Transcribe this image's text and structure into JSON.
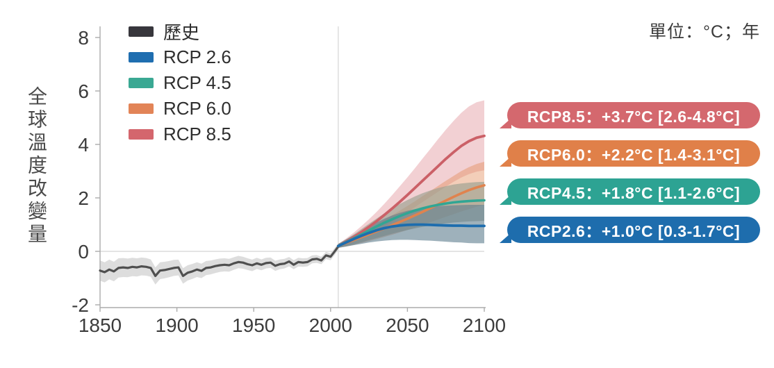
{
  "unit_label": "單位：°C；年",
  "y_axis_title": "全球溫度改變量",
  "legend": [
    {
      "id": "historical",
      "label": "歷史",
      "color": "#37363c"
    },
    {
      "id": "rcp26",
      "label": "RCP 2.6",
      "color": "#1f6eb0"
    },
    {
      "id": "rcp45",
      "label": "RCP 4.5",
      "color": "#3aa893"
    },
    {
      "id": "rcp60",
      "label": "RCP 6.0",
      "color": "#e28457"
    },
    {
      "id": "rcp85",
      "label": "RCP 8.5",
      "color": "#d4666d"
    }
  ],
  "callouts": [
    {
      "id": "rcp85",
      "label": "RCP8.5：+3.7°C [2.6-4.8°C]",
      "color": "#d4686e"
    },
    {
      "id": "rcp60",
      "label": "RCP6.0：+2.2°C [1.4-3.1°C]",
      "color": "#e08049"
    },
    {
      "id": "rcp45",
      "label": "RCP4.5：+1.8°C [1.1-2.6°C]",
      "color": "#2da393"
    },
    {
      "id": "rcp26",
      "label": "RCP2.6：+1.0°C [0.3-1.7°C]",
      "color": "#1e6dad"
    }
  ],
  "chart_data": {
    "type": "line",
    "title": "",
    "xlabel": "年",
    "ylabel": "全球溫度改變量 (°C)",
    "xlim": [
      1850,
      2100
    ],
    "ylim": [
      -2.1,
      8.4
    ],
    "x_ticks": [
      1850,
      1900,
      1950,
      2000,
      2050,
      2100
    ],
    "y_ticks": [
      8,
      6,
      4,
      2,
      0,
      -2
    ],
    "grid": "zero-line-only",
    "legend_position": "top-left",
    "reference_lines": {
      "vertical_x": 2005,
      "horizontal_y": 0
    },
    "series": [
      {
        "id": "historical",
        "name": "歷史",
        "line_color": "#4f4f4f",
        "line_width": 3.2,
        "band_color": "#d9d9d9",
        "band_opacity": 0.9,
        "x": [
          1850,
          1853,
          1856,
          1859,
          1862,
          1865,
          1868,
          1871,
          1874,
          1877,
          1880,
          1883,
          1886,
          1889,
          1892,
          1895,
          1898,
          1901,
          1904,
          1907,
          1910,
          1913,
          1916,
          1919,
          1922,
          1925,
          1928,
          1931,
          1934,
          1937,
          1940,
          1943,
          1946,
          1949,
          1952,
          1955,
          1958,
          1961,
          1964,
          1967,
          1970,
          1973,
          1976,
          1979,
          1982,
          1985,
          1988,
          1991,
          1994,
          1997,
          2000,
          2003,
          2005
        ],
        "y": [
          -0.72,
          -0.78,
          -0.68,
          -0.75,
          -0.62,
          -0.6,
          -0.62,
          -0.58,
          -0.6,
          -0.56,
          -0.58,
          -0.62,
          -0.92,
          -0.72,
          -0.7,
          -0.66,
          -0.62,
          -0.6,
          -0.92,
          -0.8,
          -0.75,
          -0.68,
          -0.73,
          -0.62,
          -0.6,
          -0.55,
          -0.52,
          -0.5,
          -0.52,
          -0.45,
          -0.4,
          -0.42,
          -0.48,
          -0.52,
          -0.45,
          -0.5,
          -0.44,
          -0.42,
          -0.54,
          -0.48,
          -0.46,
          -0.38,
          -0.5,
          -0.4,
          -0.42,
          -0.4,
          -0.3,
          -0.28,
          -0.34,
          -0.15,
          -0.2,
          0.02,
          0.18
        ],
        "band_hi": [
          -0.34,
          -0.41,
          -0.31,
          -0.39,
          -0.26,
          -0.25,
          -0.27,
          -0.24,
          -0.26,
          -0.23,
          -0.25,
          -0.3,
          -0.6,
          -0.41,
          -0.39,
          -0.36,
          -0.32,
          -0.31,
          -0.63,
          -0.52,
          -0.47,
          -0.41,
          -0.46,
          -0.36,
          -0.34,
          -0.3,
          -0.27,
          -0.26,
          -0.28,
          -0.22,
          -0.17,
          -0.2,
          -0.26,
          -0.31,
          -0.24,
          -0.3,
          -0.24,
          -0.23,
          -0.35,
          -0.3,
          -0.28,
          -0.21,
          -0.33,
          -0.24,
          -0.26,
          -0.25,
          -0.15,
          -0.14,
          -0.2,
          -0.02,
          -0.07,
          0.15,
          0.3
        ],
        "band_lo": [
          -1.1,
          -1.16,
          -1.05,
          -1.12,
          -0.98,
          -0.96,
          -0.97,
          -0.93,
          -0.94,
          -0.9,
          -0.91,
          -0.95,
          -1.24,
          -1.04,
          -1.01,
          -0.97,
          -0.92,
          -0.9,
          -1.21,
          -1.09,
          -1.03,
          -0.96,
          -1.0,
          -0.89,
          -0.86,
          -0.81,
          -0.77,
          -0.75,
          -0.76,
          -0.69,
          -0.63,
          -0.65,
          -0.7,
          -0.74,
          -0.66,
          -0.71,
          -0.64,
          -0.62,
          -0.73,
          -0.67,
          -0.64,
          -0.56,
          -0.67,
          -0.57,
          -0.58,
          -0.56,
          -0.45,
          -0.43,
          -0.48,
          -0.29,
          -0.33,
          -0.11,
          0.06
        ]
      },
      {
        "id": "rcp85",
        "name": "RCP 8.5",
        "line_color": "#cb6067",
        "line_width": 3.8,
        "band_color": "#d4646c",
        "band_opacity": 0.3,
        "x": [
          2005,
          2010,
          2015,
          2020,
          2025,
          2030,
          2035,
          2040,
          2045,
          2050,
          2055,
          2060,
          2065,
          2070,
          2075,
          2080,
          2085,
          2090,
          2095,
          2100
        ],
        "y": [
          0.2,
          0.36,
          0.53,
          0.72,
          0.92,
          1.13,
          1.36,
          1.6,
          1.85,
          2.11,
          2.38,
          2.65,
          2.92,
          3.19,
          3.46,
          3.71,
          3.94,
          4.12,
          4.25,
          4.32
        ],
        "band_hi": [
          0.28,
          0.48,
          0.7,
          0.94,
          1.2,
          1.48,
          1.78,
          2.1,
          2.43,
          2.77,
          3.12,
          3.48,
          3.84,
          4.2,
          4.55,
          4.88,
          5.18,
          5.42,
          5.58,
          5.65
        ],
        "band_lo": [
          0.13,
          0.24,
          0.36,
          0.49,
          0.63,
          0.78,
          0.94,
          1.11,
          1.29,
          1.47,
          1.66,
          1.85,
          2.04,
          2.23,
          2.42,
          2.6,
          2.76,
          2.89,
          2.98,
          3.03
        ],
        "mean_2081_2100": 3.7,
        "likely_range_2081_2100": [
          2.6,
          4.8
        ]
      },
      {
        "id": "rcp60",
        "name": "RCP 6.0",
        "line_color": "#e0834e",
        "line_width": 3.6,
        "band_color": "#e1854f",
        "band_opacity": 0.4,
        "x": [
          2005,
          2010,
          2015,
          2020,
          2025,
          2030,
          2035,
          2040,
          2045,
          2050,
          2055,
          2060,
          2065,
          2070,
          2075,
          2080,
          2085,
          2090,
          2095,
          2100
        ],
        "y": [
          0.2,
          0.31,
          0.42,
          0.53,
          0.64,
          0.75,
          0.86,
          0.98,
          1.1,
          1.22,
          1.35,
          1.48,
          1.62,
          1.76,
          1.9,
          2.04,
          2.17,
          2.29,
          2.39,
          2.47
        ],
        "band_hi": [
          0.28,
          0.42,
          0.56,
          0.71,
          0.86,
          1.02,
          1.18,
          1.35,
          1.52,
          1.7,
          1.88,
          2.07,
          2.26,
          2.45,
          2.64,
          2.82,
          3.0,
          3.15,
          3.27,
          3.35
        ],
        "band_lo": [
          0.13,
          0.18,
          0.24,
          0.31,
          0.38,
          0.46,
          0.54,
          0.62,
          0.71,
          0.8,
          0.89,
          0.99,
          1.09,
          1.19,
          1.29,
          1.39,
          1.49,
          1.58,
          1.67,
          1.74
        ],
        "mean_2081_2100": 2.2,
        "likely_range_2081_2100": [
          1.4,
          3.1
        ]
      },
      {
        "id": "rcp45",
        "name": "RCP 4.5",
        "line_color": "#31a694",
        "line_width": 3.6,
        "band_color": "#9aa08f",
        "band_opacity": 0.65,
        "x": [
          2005,
          2010,
          2015,
          2020,
          2025,
          2030,
          2035,
          2040,
          2045,
          2050,
          2055,
          2060,
          2065,
          2070,
          2075,
          2080,
          2085,
          2090,
          2095,
          2100
        ],
        "y": [
          0.2,
          0.34,
          0.48,
          0.63,
          0.78,
          0.93,
          1.07,
          1.2,
          1.32,
          1.43,
          1.53,
          1.61,
          1.68,
          1.74,
          1.79,
          1.83,
          1.86,
          1.88,
          1.9,
          1.91
        ],
        "band_hi": [
          0.28,
          0.45,
          0.63,
          0.83,
          1.03,
          1.23,
          1.42,
          1.6,
          1.77,
          1.92,
          2.06,
          2.18,
          2.28,
          2.37,
          2.44,
          2.5,
          2.54,
          2.57,
          2.59,
          2.6
        ],
        "band_lo": [
          0.13,
          0.19,
          0.26,
          0.34,
          0.42,
          0.5,
          0.58,
          0.66,
          0.73,
          0.8,
          0.86,
          0.92,
          0.97,
          1.01,
          1.05,
          1.08,
          1.1,
          1.12,
          1.13,
          1.14
        ],
        "mean_2081_2100": 1.8,
        "likely_range_2081_2100": [
          1.1,
          2.6
        ]
      },
      {
        "id": "rcp26",
        "name": "RCP 2.6",
        "line_color": "#1d6dae",
        "line_width": 3.8,
        "band_color": "#5e7d8e",
        "band_opacity": 0.6,
        "x": [
          2005,
          2010,
          2015,
          2020,
          2025,
          2030,
          2035,
          2040,
          2045,
          2050,
          2055,
          2060,
          2065,
          2070,
          2075,
          2080,
          2085,
          2090,
          2095,
          2100
        ],
        "y": [
          0.2,
          0.33,
          0.46,
          0.58,
          0.69,
          0.79,
          0.87,
          0.93,
          0.97,
          0.99,
          1.0,
          1.0,
          0.99,
          0.98,
          0.97,
          0.96,
          0.96,
          0.95,
          0.95,
          0.95
        ],
        "band_hi": [
          0.28,
          0.44,
          0.6,
          0.77,
          0.93,
          1.08,
          1.22,
          1.34,
          1.44,
          1.52,
          1.58,
          1.63,
          1.66,
          1.69,
          1.71,
          1.72,
          1.73,
          1.74,
          1.74,
          1.74
        ],
        "band_lo": [
          0.13,
          0.18,
          0.23,
          0.28,
          0.33,
          0.37,
          0.4,
          0.42,
          0.43,
          0.43,
          0.42,
          0.41,
          0.4,
          0.38,
          0.36,
          0.34,
          0.33,
          0.31,
          0.3,
          0.3
        ],
        "mean_2081_2100": 1.0,
        "likely_range_2081_2100": [
          0.3,
          1.7
        ]
      }
    ]
  }
}
